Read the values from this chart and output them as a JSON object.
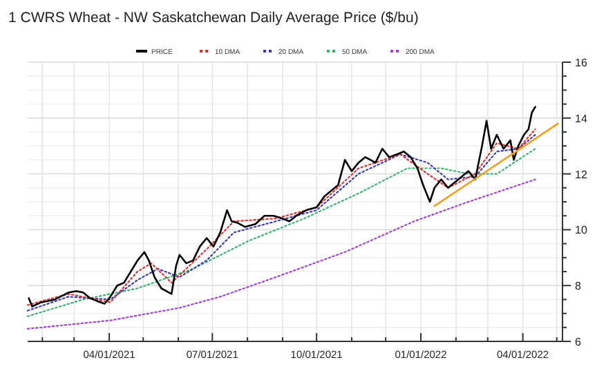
{
  "chart_data": {
    "type": "line",
    "title": "1 CWRS Wheat - NW Saskatchewan Daily Average Price ($/bu)",
    "legend": "top",
    "grid": true,
    "marker": "none",
    "xlim": [
      "2021-01-19",
      "2022-05-06"
    ],
    "xticks": [
      {
        "value": "2021-02-01",
        "label": null
      },
      {
        "value": "2021-03-01",
        "label": null
      },
      {
        "value": "2021-04-01",
        "label": "04/01/2021"
      },
      {
        "value": "2021-05-01",
        "label": null
      },
      {
        "value": "2021-06-01",
        "label": null
      },
      {
        "value": "2021-07-01",
        "label": "07/01/2021"
      },
      {
        "value": "2021-08-01",
        "label": null
      },
      {
        "value": "2021-09-01",
        "label": null
      },
      {
        "value": "2021-10-01",
        "label": "10/01/2021"
      },
      {
        "value": "2021-11-01",
        "label": null
      },
      {
        "value": "2021-12-01",
        "label": null
      },
      {
        "value": "2022-01-01",
        "label": "01/01/2022"
      },
      {
        "value": "2022-02-01",
        "label": null
      },
      {
        "value": "2022-03-01",
        "label": null
      },
      {
        "value": "2022-04-01",
        "label": "04/01/2022"
      },
      {
        "value": "2022-05-01",
        "label": null
      }
    ],
    "ylim": [
      6,
      16
    ],
    "yticks": [
      6,
      {
        "value": 6.5,
        "label": null
      },
      {
        "value": 7,
        "label": null
      },
      {
        "value": 7.5,
        "label": null
      },
      8,
      {
        "value": 8.5,
        "label": null
      },
      {
        "value": 9,
        "label": null
      },
      {
        "value": 9.5,
        "label": null
      },
      10,
      {
        "value": 10.5,
        "label": null
      },
      {
        "value": 11,
        "label": null
      },
      {
        "value": 11.5,
        "label": null
      },
      12,
      {
        "value": 12.5,
        "label": null
      },
      {
        "value": 13,
        "label": null
      },
      {
        "value": 13.5,
        "label": null
      },
      14,
      {
        "value": 14.5,
        "label": null
      },
      {
        "value": 15,
        "label": null
      },
      {
        "value": 15.5,
        "label": null
      },
      16
    ],
    "series": [
      {
        "name": "200 DMA",
        "color": "#a040e0",
        "line_style": "dotted",
        "x": [
          "2021-01-19",
          "2021-04-02",
          "2021-06-02",
          "2021-07-08",
          "2021-08-26",
          "2021-10-26",
          "2021-12-26",
          "2022-02-12",
          "2022-04-12"
        ],
        "values": [
          6.45,
          6.75,
          7.2,
          7.6,
          8.3,
          9.2,
          10.3,
          11.0,
          11.8
        ]
      },
      {
        "name": "50 DMA",
        "color": "#3cb371",
        "line_style": "dotted",
        "x": [
          "2021-01-19",
          "2021-03-09",
          "2021-04-26",
          "2021-06-14",
          "2021-08-02",
          "2021-09-20",
          "2021-11-07",
          "2021-12-20",
          "2022-01-19",
          "2022-02-12",
          "2022-03-09",
          "2022-04-12"
        ],
        "values": [
          6.9,
          7.5,
          7.9,
          8.6,
          9.6,
          10.4,
          11.3,
          12.2,
          12.2,
          12.0,
          12.0,
          12.9
        ]
      },
      {
        "name": "20 DMA",
        "color": "#3a3ab8",
        "line_style": "dotted",
        "x": [
          "2021-01-19",
          "2021-02-24",
          "2021-04-02",
          "2021-04-26",
          "2021-05-14",
          "2021-06-02",
          "2021-06-26",
          "2021-07-20",
          "2021-08-26",
          "2021-10-01",
          "2021-11-07",
          "2021-12-14",
          "2022-01-07",
          "2022-01-25",
          "2022-02-18",
          "2022-03-09",
          "2022-03-28",
          "2022-04-12"
        ],
        "values": [
          7.1,
          7.6,
          7.5,
          8.2,
          8.6,
          8.3,
          8.9,
          9.9,
          10.3,
          10.7,
          12.0,
          12.7,
          12.4,
          11.8,
          11.9,
          12.8,
          12.9,
          13.4
        ]
      },
      {
        "name": "10 DMA",
        "color": "#e03030",
        "line_style": "dotted",
        "x": [
          "2021-01-19",
          "2021-02-24",
          "2021-04-02",
          "2021-04-26",
          "2021-05-08",
          "2021-05-26",
          "2021-06-26",
          "2021-07-20",
          "2021-08-26",
          "2021-10-01",
          "2021-11-07",
          "2021-12-14",
          "2022-01-07",
          "2022-01-25",
          "2022-02-18",
          "2022-03-09",
          "2022-03-28",
          "2022-04-12"
        ],
        "values": [
          7.3,
          7.7,
          7.4,
          8.5,
          8.8,
          8.1,
          9.3,
          10.3,
          10.4,
          10.8,
          12.2,
          12.7,
          12.0,
          11.5,
          12.0,
          13.1,
          12.9,
          13.6
        ]
      },
      {
        "name": "PRICE",
        "color": "#000000",
        "line_style": "solid",
        "x": [
          "2021-01-20",
          "2021-01-23",
          "2021-01-31",
          "2021-02-12",
          "2021-02-24",
          "2021-03-03",
          "2021-03-09",
          "2021-03-15",
          "2021-03-21",
          "2021-03-28",
          "2021-04-02",
          "2021-04-08",
          "2021-04-14",
          "2021-04-20",
          "2021-04-26",
          "2021-05-02",
          "2021-05-06",
          "2021-05-11",
          "2021-05-17",
          "2021-05-26",
          "2021-05-30",
          "2021-06-02",
          "2021-06-08",
          "2021-06-14",
          "2021-06-20",
          "2021-06-26",
          "2021-07-02",
          "2021-07-08",
          "2021-07-14",
          "2021-07-18",
          "2021-07-23",
          "2021-07-30",
          "2021-08-08",
          "2021-08-16",
          "2021-08-24",
          "2021-09-01",
          "2021-09-07",
          "2021-09-13",
          "2021-09-22",
          "2021-10-01",
          "2021-10-08",
          "2021-10-20",
          "2021-10-26",
          "2021-11-01",
          "2021-11-07",
          "2021-11-13",
          "2021-11-22",
          "2021-11-28",
          "2021-12-04",
          "2021-12-11",
          "2021-12-17",
          "2021-12-23",
          "2021-12-29",
          "2022-01-03",
          "2022-01-09",
          "2022-01-13",
          "2022-01-19",
          "2022-01-25",
          "2022-01-31",
          "2022-02-06",
          "2022-02-12",
          "2022-02-18",
          "2022-02-22",
          "2022-02-24",
          "2022-02-28",
          "2022-03-04",
          "2022-03-09",
          "2022-03-15",
          "2022-03-21",
          "2022-03-24",
          "2022-03-28",
          "2022-04-02",
          "2022-04-06",
          "2022-04-09",
          "2022-04-12"
        ],
        "values": [
          7.55,
          7.25,
          7.4,
          7.5,
          7.75,
          7.8,
          7.75,
          7.55,
          7.45,
          7.35,
          7.6,
          8.0,
          8.1,
          8.5,
          8.9,
          9.2,
          8.9,
          8.3,
          7.9,
          7.7,
          8.7,
          9.1,
          8.8,
          8.9,
          9.4,
          9.7,
          9.4,
          9.9,
          10.7,
          10.3,
          10.25,
          10.1,
          10.2,
          10.5,
          10.5,
          10.4,
          10.3,
          10.5,
          10.7,
          10.8,
          11.2,
          11.6,
          12.5,
          12.1,
          12.4,
          12.6,
          12.4,
          12.9,
          12.6,
          12.7,
          12.8,
          12.6,
          12.2,
          11.6,
          11.0,
          11.5,
          11.8,
          11.5,
          11.7,
          11.9,
          12.1,
          11.8,
          12.6,
          13.0,
          13.9,
          12.9,
          13.4,
          12.9,
          13.2,
          12.5,
          13.0,
          13.4,
          13.6,
          14.2,
          14.4
        ]
      },
      {
        "type": "line",
        "color": "#f0a020",
        "line_style": "solid",
        "x": [
          "2022-01-13",
          "2022-05-02"
        ],
        "values": [
          10.85,
          13.8
        ]
      }
    ]
  }
}
